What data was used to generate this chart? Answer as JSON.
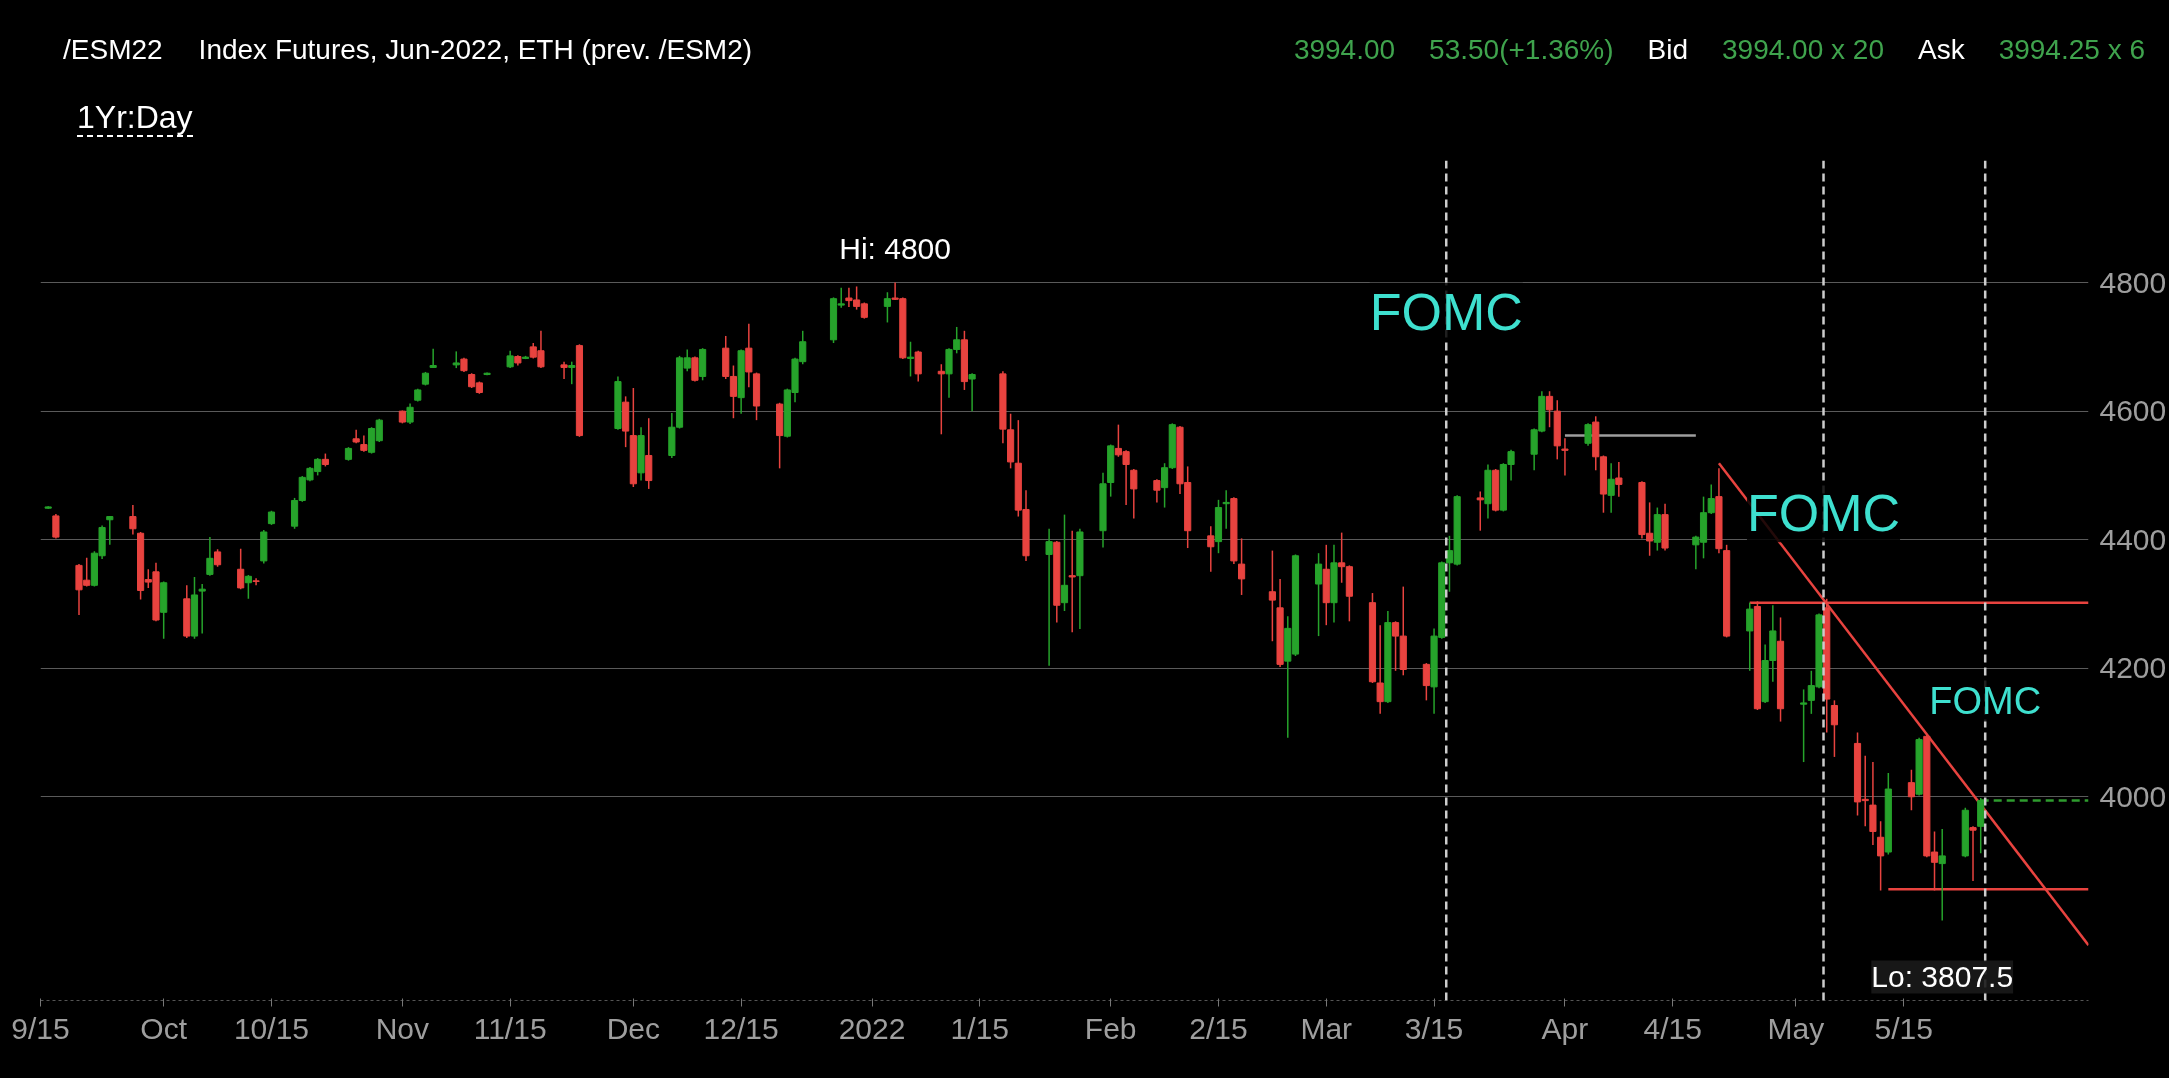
{
  "chart_data": {
    "type": "candlestick",
    "title": "/ESM22",
    "subtitle": "Index Futures, Jun-2022, ETH (prev. /ESM2)",
    "x": [
      "2021-09-16",
      "2021-09-17",
      "2021-09-20",
      "2021-09-21",
      "2021-09-22",
      "2021-09-23",
      "2021-09-24",
      "2021-09-27",
      "2021-09-28",
      "2021-09-29",
      "2021-09-30",
      "2021-10-01",
      "2021-10-04",
      "2021-10-05",
      "2021-10-06",
      "2021-10-07",
      "2021-10-08",
      "2021-10-11",
      "2021-10-12",
      "2021-10-13",
      "2021-10-14",
      "2021-10-15",
      "2021-10-18",
      "2021-10-19",
      "2021-10-20",
      "2021-10-21",
      "2021-10-22",
      "2021-10-25",
      "2021-10-26",
      "2021-10-27",
      "2021-10-28",
      "2021-10-29",
      "2021-11-01",
      "2021-11-02",
      "2021-11-03",
      "2021-11-04",
      "2021-11-05",
      "2021-11-08",
      "2021-11-09",
      "2021-11-10",
      "2021-11-11",
      "2021-11-12",
      "2021-11-15",
      "2021-11-16",
      "2021-11-17",
      "2021-11-18",
      "2021-11-19",
      "2021-11-22",
      "2021-11-23",
      "2021-11-24",
      "2021-11-29",
      "2021-11-30",
      "2021-12-01",
      "2021-12-02",
      "2021-12-03",
      "2021-12-06",
      "2021-12-07",
      "2021-12-08",
      "2021-12-09",
      "2021-12-10",
      "2021-12-13",
      "2021-12-14",
      "2021-12-15",
      "2021-12-16",
      "2021-12-17",
      "2021-12-20",
      "2021-12-21",
      "2021-12-22",
      "2021-12-23",
      "2021-12-27",
      "2021-12-28",
      "2021-12-29",
      "2021-12-30",
      "2021-12-31",
      "2022-01-03",
      "2022-01-04",
      "2022-01-05",
      "2022-01-06",
      "2022-01-07",
      "2022-01-10",
      "2022-01-11",
      "2022-01-12",
      "2022-01-13",
      "2022-01-14",
      "2022-01-18",
      "2022-01-19",
      "2022-01-20",
      "2022-01-21",
      "2022-01-24",
      "2022-01-25",
      "2022-01-26",
      "2022-01-27",
      "2022-01-28",
      "2022-01-31",
      "2022-02-01",
      "2022-02-02",
      "2022-02-03",
      "2022-02-04",
      "2022-02-07",
      "2022-02-08",
      "2022-02-09",
      "2022-02-10",
      "2022-02-11",
      "2022-02-14",
      "2022-02-15",
      "2022-02-16",
      "2022-02-17",
      "2022-02-18",
      "2022-02-22",
      "2022-02-23",
      "2022-02-24",
      "2022-02-25",
      "2022-02-28",
      "2022-03-01",
      "2022-03-02",
      "2022-03-03",
      "2022-03-04",
      "2022-03-07",
      "2022-03-08",
      "2022-03-09",
      "2022-03-10",
      "2022-03-11",
      "2022-03-14",
      "2022-03-15",
      "2022-03-16",
      "2022-03-17",
      "2022-03-18",
      "2022-03-21",
      "2022-03-22",
      "2022-03-23",
      "2022-03-24",
      "2022-03-25",
      "2022-03-28",
      "2022-03-29",
      "2022-03-30",
      "2022-03-31",
      "2022-04-01",
      "2022-04-04",
      "2022-04-05",
      "2022-04-06",
      "2022-04-07",
      "2022-04-08",
      "2022-04-11",
      "2022-04-12",
      "2022-04-13",
      "2022-04-14",
      "2022-04-18",
      "2022-04-19",
      "2022-04-20",
      "2022-04-21",
      "2022-04-22",
      "2022-04-25",
      "2022-04-26",
      "2022-04-27",
      "2022-04-28",
      "2022-04-29",
      "2022-05-02",
      "2022-05-03",
      "2022-05-04",
      "2022-05-05",
      "2022-05-06",
      "2022-05-09",
      "2022-05-10",
      "2022-05-11",
      "2022-05-12",
      "2022-05-13",
      "2022-05-16",
      "2022-05-17",
      "2022-05-18",
      "2022-05-19",
      "2022-05-20",
      "2022-05-23",
      "2022-05-24",
      "2022-05-25"
    ],
    "ohlc": [
      [
        4449,
        4452,
        4448,
        4451
      ],
      [
        4437,
        4440,
        4402,
        4404
      ],
      [
        4360,
        4362,
        4283,
        4322
      ],
      [
        4337,
        4372,
        4327,
        4329
      ],
      [
        4329,
        4382,
        4327,
        4379
      ],
      [
        4375,
        4422,
        4370,
        4419
      ],
      [
        4431,
        4437,
        4392,
        4436
      ],
      [
        4436,
        4454,
        4408,
        4417
      ],
      [
        4410,
        4412,
        4307,
        4321
      ],
      [
        4338,
        4354,
        4325,
        4334
      ],
      [
        4350,
        4364,
        4273,
        4275
      ],
      [
        4287,
        4335,
        4246,
        4333
      ],
      [
        4308,
        4329,
        4247,
        4250
      ],
      [
        4250,
        4342,
        4246,
        4314
      ],
      [
        4320,
        4331,
        4254,
        4323
      ],
      [
        4346,
        4404,
        4344,
        4371
      ],
      [
        4381,
        4385,
        4358,
        4361
      ],
      [
        4354,
        4386,
        4323,
        4325
      ],
      [
        4333,
        4345,
        4308,
        4343
      ],
      [
        4336,
        4340,
        4329,
        4335
      ],
      [
        4367,
        4415,
        4363,
        4412
      ],
      [
        4425,
        4445,
        4423,
        4443
      ],
      [
        4421,
        4465,
        4417,
        4461
      ],
      [
        4461,
        4499,
        4459,
        4497
      ],
      [
        4493,
        4513,
        4491,
        4511
      ],
      [
        4506,
        4527,
        4500,
        4525
      ],
      [
        4525,
        4534,
        4514,
        4517
      ],
      [
        4525,
        4544,
        4523,
        4542
      ],
      [
        4557,
        4571,
        4550,
        4552
      ],
      [
        4548,
        4562,
        4537,
        4539
      ],
      [
        4536,
        4575,
        4534,
        4573
      ],
      [
        4554,
        4588,
        4552,
        4586
      ],
      [
        4600,
        4601,
        4581,
        4583
      ],
      [
        4583,
        4612,
        4580,
        4606
      ],
      [
        4617,
        4635,
        4615,
        4633
      ],
      [
        4642,
        4661,
        4640,
        4659
      ],
      [
        4668,
        4697,
        4667,
        4671
      ],
      [
        4672,
        4693,
        4667,
        4675
      ],
      [
        4681,
        4683,
        4661,
        4663
      ],
      [
        4657,
        4659,
        4636,
        4638
      ],
      [
        4644,
        4646,
        4627,
        4629
      ],
      [
        4657,
        4660,
        4656,
        4659
      ],
      [
        4669,
        4694,
        4667,
        4686
      ],
      [
        4685,
        4687,
        4671,
        4675
      ],
      [
        4682,
        4686,
        4681,
        4684
      ],
      [
        4700,
        4706,
        4682,
        4684
      ],
      [
        4694,
        4725,
        4667,
        4669
      ],
      [
        4672,
        4677,
        4650,
        4668
      ],
      [
        4668,
        4677,
        4642,
        4671
      ],
      [
        4702,
        4704,
        4560,
        4562
      ],
      [
        4573,
        4654,
        4571,
        4646
      ],
      [
        4614,
        4623,
        4544,
        4569
      ],
      [
        4562,
        4636,
        4482,
        4487
      ],
      [
        4504,
        4575,
        4492,
        4562
      ],
      [
        4531,
        4589,
        4479,
        4492
      ],
      [
        4531,
        4597,
        4527,
        4575
      ],
      [
        4575,
        4686,
        4573,
        4683
      ],
      [
        4667,
        4696,
        4662,
        4683
      ],
      [
        4683,
        4685,
        4646,
        4648
      ],
      [
        4654,
        4698,
        4648,
        4696
      ],
      [
        4698,
        4717,
        4650,
        4654
      ],
      [
        4654,
        4671,
        4589,
        4623
      ],
      [
        4621,
        4696,
        4596,
        4694
      ],
      [
        4698,
        4736,
        4637,
        4661
      ],
      [
        4658,
        4660,
        4586,
        4608
      ],
      [
        4611,
        4613,
        4511,
        4562
      ],
      [
        4561,
        4635,
        4559,
        4633
      ],
      [
        4629,
        4683,
        4614,
        4681
      ],
      [
        4677,
        4725,
        4673,
        4708
      ],
      [
        4711,
        4777,
        4706,
        4775
      ],
      [
        4765,
        4792,
        4761,
        4767
      ],
      [
        4776,
        4792,
        4762,
        4772
      ],
      [
        4773,
        4794,
        4758,
        4763
      ],
      [
        4767,
        4769,
        4744,
        4746
      ],
      [
        4763,
        4785,
        4738,
        4775
      ],
      [
        4776,
        4800,
        4773,
        4774
      ],
      [
        4775,
        4777,
        4681,
        4683
      ],
      [
        4682,
        4708,
        4654,
        4684
      ],
      [
        4692,
        4694,
        4646,
        4658
      ],
      [
        4662,
        4673,
        4564,
        4658
      ],
      [
        4658,
        4698,
        4621,
        4696
      ],
      [
        4696,
        4731,
        4690,
        4711
      ],
      [
        4711,
        4725,
        4633,
        4646
      ],
      [
        4650,
        4659,
        4600,
        4657
      ],
      [
        4658,
        4662,
        4550,
        4572
      ],
      [
        4571,
        4596,
        4511,
        4521
      ],
      [
        4519,
        4586,
        4436,
        4446
      ],
      [
        4447,
        4477,
        4367,
        4375
      ],
      [
        4377,
        4417,
        4204,
        4397
      ],
      [
        4396,
        4398,
        4271,
        4298
      ],
      [
        4302,
        4439,
        4289,
        4329
      ],
      [
        4344,
        4414,
        4256,
        4342
      ],
      [
        4344,
        4417,
        4261,
        4412
      ],
      [
        4414,
        4504,
        4388,
        4487
      ],
      [
        4489,
        4548,
        4467,
        4546
      ],
      [
        4542,
        4579,
        4529,
        4532
      ],
      [
        4537,
        4539,
        4454,
        4517
      ],
      [
        4508,
        4510,
        4433,
        4479
      ],
      [
        4492,
        4494,
        4458,
        4477
      ],
      [
        4481,
        4519,
        4450,
        4512
      ],
      [
        4512,
        4581,
        4510,
        4579
      ],
      [
        4575,
        4577,
        4471,
        4487
      ],
      [
        4489,
        4514,
        4387,
        4414
      ],
      [
        4406,
        4421,
        4350,
        4389
      ],
      [
        4397,
        4462,
        4379,
        4450
      ],
      [
        4456,
        4477,
        4417,
        4458
      ],
      [
        4464,
        4466,
        4362,
        4367
      ],
      [
        4362,
        4402,
        4314,
        4339
      ],
      [
        4319,
        4383,
        4242,
        4306
      ],
      [
        4294,
        4339,
        4202,
        4206
      ],
      [
        4211,
        4281,
        4092,
        4262
      ],
      [
        4222,
        4377,
        4219,
        4375
      ],
      [
        4331,
        4379,
        4250,
        4362
      ],
      [
        4354,
        4392,
        4267,
        4302
      ],
      [
        4302,
        4392,
        4271,
        4364
      ],
      [
        4364,
        4411,
        4333,
        4358
      ],
      [
        4358,
        4360,
        4273,
        4312
      ],
      [
        4302,
        4317,
        4177,
        4179
      ],
      [
        4177,
        4267,
        4129,
        4148
      ],
      [
        4148,
        4289,
        4146,
        4271
      ],
      [
        4271,
        4273,
        4196,
        4250
      ],
      [
        4250,
        4327,
        4189,
        4198
      ],
      [
        4206,
        4208,
        4150,
        4173
      ],
      [
        4171,
        4262,
        4129,
        4250
      ],
      [
        4248,
        4366,
        4246,
        4364
      ],
      [
        4364,
        4406,
        4319,
        4383
      ],
      [
        4362,
        4469,
        4360,
        4467
      ],
      [
        4465,
        4475,
        4414,
        4462
      ],
      [
        4456,
        4517,
        4433,
        4508
      ],
      [
        4508,
        4510,
        4444,
        4446
      ],
      [
        4446,
        4519,
        4444,
        4517
      ],
      [
        4517,
        4540,
        4492,
        4537
      ],
      [
        4533,
        4573,
        4508,
        4571
      ],
      [
        4569,
        4631,
        4567,
        4623
      ],
      [
        4623,
        4631,
        4575,
        4602
      ],
      [
        4600,
        4617,
        4525,
        4546
      ],
      [
        4541,
        4558,
        4500,
        4539
      ],
      [
        4550,
        4581,
        4546,
        4579
      ],
      [
        4583,
        4592,
        4508,
        4529
      ],
      [
        4529,
        4531,
        4442,
        4471
      ],
      [
        4469,
        4519,
        4442,
        4494
      ],
      [
        4496,
        4521,
        4467,
        4486
      ],
      [
        4489,
        4491,
        4402,
        4408
      ],
      [
        4410,
        4458,
        4375,
        4398
      ],
      [
        4396,
        4450,
        4383,
        4439
      ],
      [
        4439,
        4456,
        4383,
        4387
      ],
      [
        4392,
        4406,
        4354,
        4404
      ],
      [
        4396,
        4467,
        4371,
        4442
      ],
      [
        4442,
        4486,
        4440,
        4464
      ],
      [
        4467,
        4511,
        4379,
        4386
      ],
      [
        4383,
        4392,
        4248,
        4250
      ],
      [
        4258,
        4302,
        4196,
        4292
      ],
      [
        4296,
        4304,
        4135,
        4137
      ],
      [
        4148,
        4237,
        4146,
        4212
      ],
      [
        4212,
        4298,
        4179,
        4258
      ],
      [
        4242,
        4279,
        4117,
        4137
      ],
      [
        4144,
        4167,
        4054,
        4146
      ],
      [
        4150,
        4196,
        4129,
        4173
      ],
      [
        4171,
        4285,
        4169,
        4283
      ],
      [
        4294,
        4308,
        4100,
        4152
      ],
      [
        4142,
        4150,
        4062,
        4112
      ],
      [
        4083,
        4100,
        3971,
        3992
      ],
      [
        3996,
        4064,
        3954,
        3994
      ],
      [
        3987,
        4054,
        3925,
        3946
      ],
      [
        3937,
        3962,
        3854,
        3908
      ],
      [
        3914,
        4037,
        3910,
        4012
      ],
      [
        4022,
        4042,
        3979,
        4000
      ],
      [
        4004,
        4092,
        4002,
        4089
      ],
      [
        4094,
        4096,
        3906,
        3908
      ],
      [
        3914,
        3946,
        3854,
        3898
      ],
      [
        3896,
        3950,
        3807.5,
        3908
      ],
      [
        3908,
        3983,
        3906,
        3979
      ],
      [
        3952,
        3954,
        3869,
        3948
      ],
      [
        3954,
        3998,
        3912,
        3994
      ]
    ],
    "colors": [
      "#26a32b",
      "#e8433f",
      "#e8433f",
      "#e8433f",
      "#26a32b",
      "#26a32b",
      "#26a32b",
      "#e8433f",
      "#e8433f",
      "#e8433f",
      "#e8433f",
      "#26a32b",
      "#e8433f",
      "#26a32b",
      "#26a32b",
      "#26a32b",
      "#e8433f",
      "#e8433f",
      "#26a32b",
      "#e8433f",
      "#26a32b",
      "#26a32b",
      "#26a32b",
      "#26a32b",
      "#26a32b",
      "#26a32b",
      "#e8433f",
      "#26a32b",
      "#e8433f",
      "#e8433f",
      "#26a32b",
      "#26a32b",
      "#e8433f",
      "#26a32b",
      "#26a32b",
      "#26a32b",
      "#26a32b",
      "#26a32b",
      "#e8433f",
      "#e8433f",
      "#e8433f",
      "#26a32b",
      "#26a32b",
      "#e8433f",
      "#26a32b",
      "#e8433f",
      "#e8433f",
      "#e8433f",
      "#26a32b",
      "#e8433f",
      "#26a32b",
      "#e8433f",
      "#e8433f",
      "#26a32b",
      "#e8433f",
      "#26a32b",
      "#26a32b",
      "#26a32b",
      "#e8433f",
      "#26a32b",
      "#e8433f",
      "#e8433f",
      "#26a32b",
      "#e8433f",
      "#e8433f",
      "#e8433f",
      "#26a32b",
      "#26a32b",
      "#26a32b",
      "#26a32b",
      "#26a32b",
      "#e8433f",
      "#e8433f",
      "#e8433f",
      "#26a32b",
      "#e8433f",
      "#e8433f",
      "#26a32b",
      "#e8433f",
      "#e8433f",
      "#26a32b",
      "#26a32b",
      "#e8433f",
      "#26a32b",
      "#e8433f",
      "#e8433f",
      "#e8433f",
      "#e8433f",
      "#26a32b",
      "#e8433f",
      "#26a32b",
      "#e8433f",
      "#26a32b",
      "#26a32b",
      "#26a32b",
      "#e8433f",
      "#e8433f",
      "#e8433f",
      "#e8433f",
      "#26a32b",
      "#26a32b",
      "#e8433f",
      "#e8433f",
      "#e8433f",
      "#26a32b",
      "#26a32b",
      "#e8433f",
      "#e8433f",
      "#e8433f",
      "#e8433f",
      "#26a32b",
      "#26a32b",
      "#26a32b",
      "#e8433f",
      "#26a32b",
      "#e8433f",
      "#e8433f",
      "#e8433f",
      "#e8433f",
      "#26a32b",
      "#e8433f",
      "#e8433f",
      "#e8433f",
      "#26a32b",
      "#26a32b",
      "#26a32b",
      "#26a32b",
      "#e8433f",
      "#26a32b",
      "#e8433f",
      "#26a32b",
      "#26a32b",
      "#26a32b",
      "#26a32b",
      "#e8433f",
      "#e8433f",
      "#e8433f",
      "#26a32b",
      "#e8433f",
      "#e8433f",
      "#26a32b",
      "#e8433f",
      "#e8433f",
      "#e8433f",
      "#26a32b",
      "#e8433f",
      "#26a32b",
      "#26a32b",
      "#26a32b",
      "#e8433f",
      "#e8433f",
      "#26a32b",
      "#e8433f",
      "#26a32b",
      "#26a32b",
      "#e8433f",
      "#26a32b",
      "#26a32b",
      "#26a32b",
      "#e8433f",
      "#e8433f",
      "#e8433f",
      "#e8433f",
      "#e8433f",
      "#e8433f",
      "#26a32b",
      "#e8433f",
      "#26a32b",
      "#e8433f",
      "#e8433f",
      "#26a32b",
      "#26a32b",
      "#e8433f",
      "#26a32b"
    ],
    "series": [
      {
        "type": "line",
        "x": [
          "2022-04-21",
          "2022-06-08"
        ],
        "values": [
          4519,
          3769
        ],
        "color": "#e8433f"
      },
      {
        "type": "line",
        "x": [
          "2022-04-25",
          "2022-06-08"
        ],
        "values": [
          4302,
          4302
        ],
        "color": "#e8433f"
      },
      {
        "type": "line",
        "x": [
          "2022-05-13",
          "2022-06-08"
        ],
        "values": [
          3856,
          3856
        ],
        "color": "#e8433f"
      },
      {
        "type": "line",
        "x": [
          "2022-04-01",
          "2022-04-18"
        ],
        "values": [
          4562,
          4562
        ],
        "color": "#9e9e9e"
      },
      {
        "type": "line",
        "x": [
          "2022-05-25",
          "2022-06-08"
        ],
        "values": [
          3994,
          3994
        ],
        "color": "#2e9c2e",
        "line_style": "dashed"
      }
    ],
    "xlim": [
      "2021-09-15",
      "2022-06-08"
    ],
    "ylim": [
      3683,
      4990
    ],
    "xticks": [
      {
        "value": "2021-09-15",
        "label": "9/15"
      },
      {
        "value": "2021-10-01",
        "label": "Oct"
      },
      {
        "value": "2021-10-15",
        "label": "10/15"
      },
      {
        "value": "2021-11-01",
        "label": "Nov"
      },
      {
        "value": "2021-11-15",
        "label": "11/15"
      },
      {
        "value": "2021-12-01",
        "label": "Dec"
      },
      {
        "value": "2021-12-15",
        "label": "12/15"
      },
      {
        "value": "2022-01-01",
        "label": "2022"
      },
      {
        "value": "2022-01-15",
        "label": "1/15"
      },
      {
        "value": "2022-02-01",
        "label": "Feb"
      },
      {
        "value": "2022-02-15",
        "label": "2/15"
      },
      {
        "value": "2022-03-01",
        "label": "Mar"
      },
      {
        "value": "2022-03-15",
        "label": "3/15"
      },
      {
        "value": "2022-04-01",
        "label": "Apr"
      },
      {
        "value": "2022-04-15",
        "label": "4/15"
      },
      {
        "value": "2022-05-01",
        "label": "May"
      },
      {
        "value": "2022-05-15",
        "label": "5/15"
      }
    ],
    "yticks": [
      4000,
      4200,
      4400,
      4600,
      4800
    ],
    "grid": "y",
    "ref_lines": [
      {
        "axis": "x",
        "value": "2022-03-16T14:00",
        "label": "FOMC",
        "color": "#cccccc",
        "line_style": "dashed"
      },
      {
        "axis": "x",
        "value": "2022-05-04T14:00",
        "label": "FOMC",
        "color": "#cccccc",
        "line_style": "dashed"
      },
      {
        "axis": "x",
        "value": "2022-05-25T14:00",
        "label": "FOMC",
        "color": "#cccccc",
        "line_style": "dashed"
      }
    ],
    "annotations": [
      "3994.00",
      "53.50(+1.36%)",
      "Bid",
      "3994.00 x 20",
      "Ask",
      "3994.25 x 6",
      "1Yr:Day",
      {
        "text": "Hi: 4800",
        "x": "2022-01-04",
        "y": 4800
      },
      {
        "text": "Lo: 3807.5",
        "x": "2022-05-20",
        "y": 3807.5
      }
    ]
  }
}
